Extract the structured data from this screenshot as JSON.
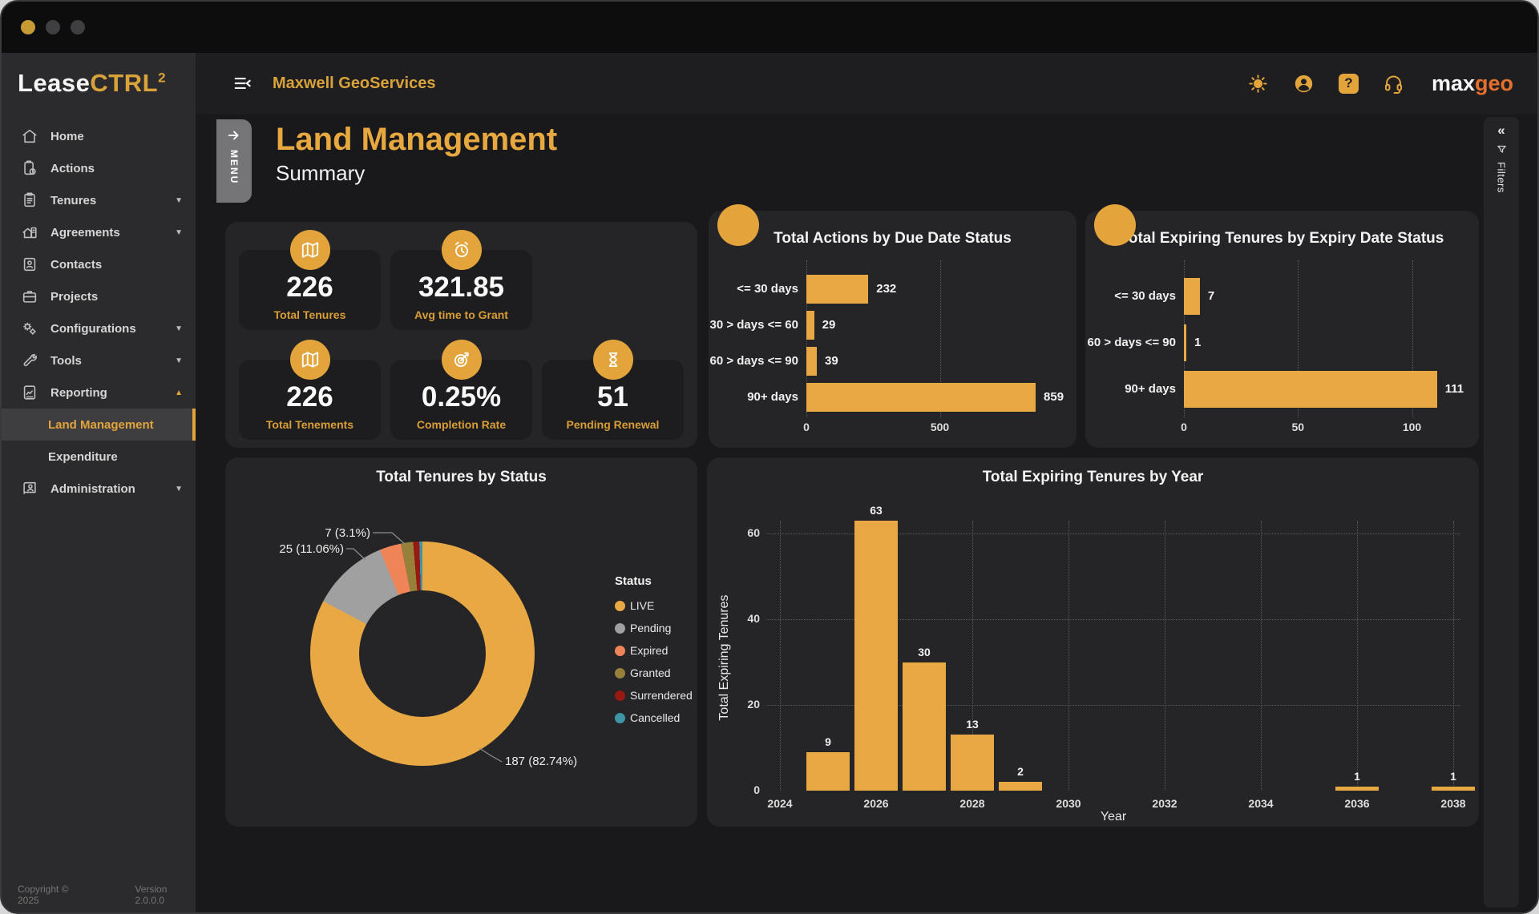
{
  "window": {
    "controls": [
      "minimize",
      "maximize",
      "close"
    ]
  },
  "sidebar": {
    "logo": {
      "lease": "Lease",
      "ctrl": "CTRL",
      "sup": "2"
    },
    "items": [
      {
        "label": "Home",
        "icon": "home"
      },
      {
        "label": "Actions",
        "icon": "actions"
      },
      {
        "label": "Tenures",
        "icon": "tenures",
        "chevron": "down"
      },
      {
        "label": "Agreements",
        "icon": "agreements",
        "chevron": "down"
      },
      {
        "label": "Contacts",
        "icon": "contacts"
      },
      {
        "label": "Projects",
        "icon": "projects"
      },
      {
        "label": "Configurations",
        "icon": "configurations",
        "chevron": "down"
      },
      {
        "label": "Tools",
        "icon": "tools",
        "chevron": "down"
      },
      {
        "label": "Reporting",
        "icon": "reporting",
        "chevron": "up",
        "expanded": true
      },
      {
        "label": "Land Management",
        "sub": true,
        "active": true
      },
      {
        "label": "Expenditure",
        "sub": true
      },
      {
        "label": "Administration",
        "icon": "administration",
        "chevron": "down"
      }
    ]
  },
  "footer": {
    "copyright": "Copyright © 2025",
    "version": "Version 2.0.0.0"
  },
  "topbar": {
    "client": "Maxwell GeoServices",
    "brand": {
      "max": "max",
      "geo": "geo"
    }
  },
  "page": {
    "title": "Land Management",
    "subtitle": "Summary",
    "menu_tab": "MENU",
    "filters_tab": "Filters"
  },
  "kpis": [
    {
      "value": "226",
      "label": "Total Tenures",
      "icon": "map"
    },
    {
      "value": "321.85",
      "label": "Avg time to Grant",
      "icon": "alarm"
    },
    {
      "value": "226",
      "label": "Total Tenements",
      "icon": "map"
    },
    {
      "value": "0.25%",
      "label": "Completion Rate",
      "icon": "target"
    },
    {
      "value": "51",
      "label": "Pending Renewal",
      "icon": "hourglass"
    }
  ],
  "colors": {
    "gold": "#e3a43c",
    "brand_orange": "#e4702d",
    "bar": "#e8a843"
  },
  "chart_data": [
    {
      "type": "bar",
      "orientation": "horizontal",
      "title": "Total Actions by Due Date Status",
      "badge_icon": "alarm",
      "categories": [
        "<= 30 days",
        "30 > days <= 60",
        "60 > days <= 90",
        "90+ days"
      ],
      "values": [
        232,
        29,
        39,
        859
      ],
      "xticks": [
        0,
        500
      ],
      "xlim": [
        0,
        880
      ],
      "bar_color": "#e8a843",
      "grid": "dotted-vertical"
    },
    {
      "type": "bar",
      "orientation": "horizontal",
      "title": "Total Expiring Tenures by Expiry Date Status",
      "badge_icon": "alarm",
      "categories": [
        "<= 30 days",
        "60 > days <= 90",
        "90+ days"
      ],
      "values": [
        7,
        1,
        111
      ],
      "xticks": [
        0,
        50,
        100
      ],
      "xlim": [
        0,
        113
      ],
      "bar_color": "#e8a843",
      "grid": "dotted-vertical"
    },
    {
      "type": "pie",
      "title": "Total Tenures by Status",
      "legend_title": "Status",
      "legend_position": "right",
      "total": 226,
      "slices": [
        {
          "name": "LIVE",
          "value": 187,
          "pct": "82.74%",
          "color": "#e8a843",
          "label": "187 (82.74%)"
        },
        {
          "name": "Pending",
          "value": 25,
          "pct": "11.06%",
          "color": "#a0a0a0",
          "label": "25 (11.06%)"
        },
        {
          "name": "Expired",
          "value": 7,
          "pct": "3.1%",
          "color": "#f08459",
          "label": "7 (3.1%)"
        },
        {
          "name": "Granted",
          "value": 4,
          "color": "#97803a"
        },
        {
          "name": "Surrendered",
          "value": 2,
          "color": "#971912"
        },
        {
          "name": "Cancelled",
          "value": 1,
          "color": "#3e95a6"
        }
      ]
    },
    {
      "type": "bar",
      "orientation": "vertical",
      "title": "Total Expiring Tenures by Year",
      "xlabel": "Year",
      "ylabel": "Total Expiring Tenures",
      "x": [
        2025,
        2026,
        2027,
        2028,
        2029,
        2036,
        2038
      ],
      "values": [
        9,
        63,
        30,
        13,
        2,
        1,
        1
      ],
      "xticks": [
        2024,
        2026,
        2028,
        2030,
        2032,
        2034,
        2036,
        2038
      ],
      "yticks": [
        0,
        20,
        40,
        60
      ],
      "ylim": [
        0,
        66
      ],
      "bar_color": "#e8a843",
      "grid": "dotted-both"
    }
  ]
}
